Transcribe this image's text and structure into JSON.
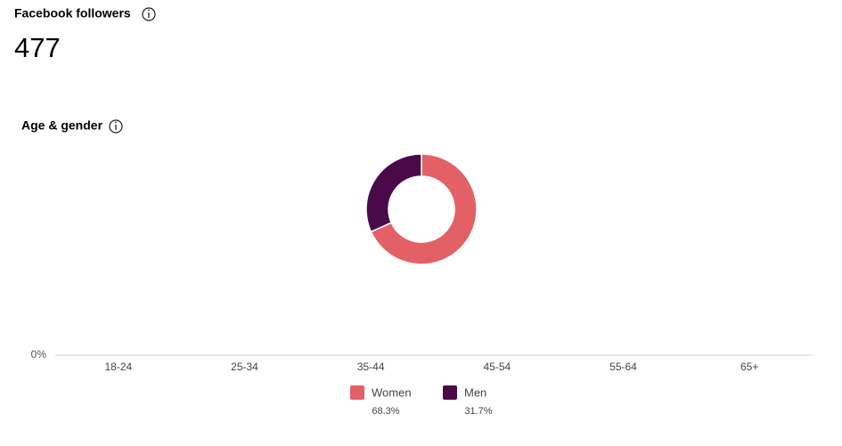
{
  "header": {
    "title": "Facebook followers",
    "count": 477
  },
  "section": {
    "title": "Age & gender"
  },
  "chart_data": [
    {
      "type": "pie",
      "categories": [
        "Women",
        "Men"
      ],
      "values": [
        68.3,
        31.7
      ],
      "value_labels": [
        "68.3%",
        "31.7%"
      ],
      "colors": [
        "#e36166",
        "#4a0a4a"
      ]
    },
    {
      "type": "bar",
      "categories": [
        "18-24",
        "25-34",
        "35-44",
        "45-54",
        "55-64",
        "65+"
      ],
      "yticks": [
        {
          "value": 0,
          "label": "0%"
        }
      ]
    }
  ]
}
